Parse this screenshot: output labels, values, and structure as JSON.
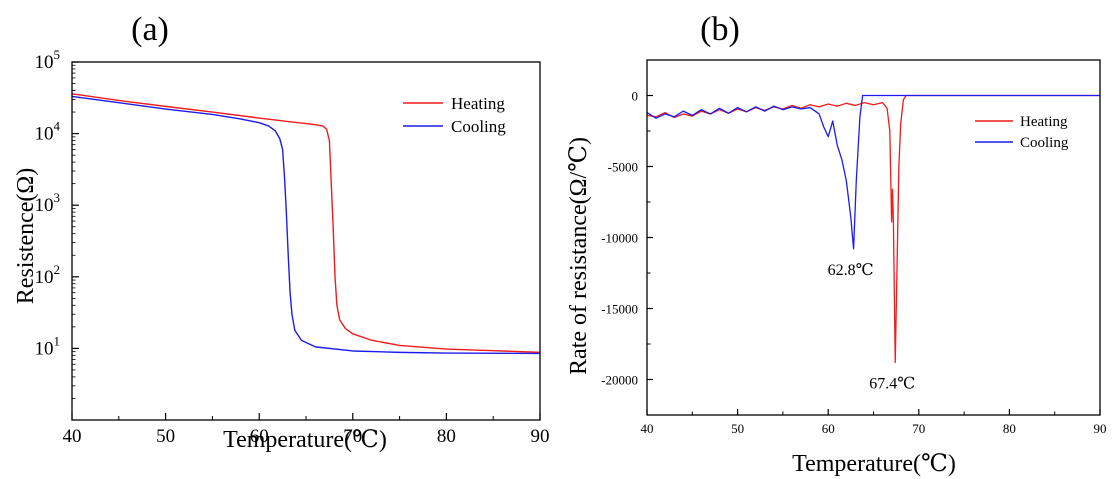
{
  "chart_data": [
    {
      "panel_label": "(a)",
      "type": "line",
      "title": "",
      "xlabel": "Temperature(℃)",
      "ylabel": "Resistence(Ω)",
      "xlim": [
        40,
        90
      ],
      "ylim": [
        1,
        100000
      ],
      "yscale": "log",
      "xticks": [
        40,
        50,
        60,
        70,
        80,
        90
      ],
      "yticks": [
        {
          "value": 10,
          "base": "10",
          "exp": "1"
        },
        {
          "value": 100,
          "base": "10",
          "exp": "2"
        },
        {
          "value": 1000,
          "base": "10",
          "exp": "3"
        },
        {
          "value": 10000,
          "base": "10",
          "exp": "4"
        },
        {
          "value": 100000,
          "base": "10",
          "exp": "5"
        }
      ],
      "legend_position": "top-right",
      "series": [
        {
          "name": "Heating",
          "color": "#ee1c1c",
          "points": [
            [
              40,
              36000
            ],
            [
              45,
              29000
            ],
            [
              50,
              24000
            ],
            [
              55,
              20000
            ],
            [
              60,
              16500
            ],
            [
              63,
              14800
            ],
            [
              65,
              13800
            ],
            [
              66,
              13300
            ],
            [
              66.8,
              12800
            ],
            [
              67.2,
              11500
            ],
            [
              67.5,
              8000
            ],
            [
              67.7,
              2000
            ],
            [
              67.9,
              500
            ],
            [
              68.1,
              100
            ],
            [
              68.3,
              40
            ],
            [
              68.6,
              25
            ],
            [
              69.2,
              19
            ],
            [
              70,
              16
            ],
            [
              72,
              13
            ],
            [
              75,
              11
            ],
            [
              80,
              9.8
            ],
            [
              85,
              9.3
            ],
            [
              90,
              8.8
            ]
          ]
        },
        {
          "name": "Cooling",
          "color": "#1c1cee",
          "points": [
            [
              40,
              33000
            ],
            [
              45,
              27000
            ],
            [
              50,
              22000
            ],
            [
              55,
              18500
            ],
            [
              58,
              16000
            ],
            [
              60,
              14200
            ],
            [
              61,
              12800
            ],
            [
              61.7,
              11000
            ],
            [
              62.2,
              8500
            ],
            [
              62.5,
              6000
            ],
            [
              62.7,
              2500
            ],
            [
              62.9,
              800
            ],
            [
              63.1,
              200
            ],
            [
              63.3,
              60
            ],
            [
              63.5,
              30
            ],
            [
              63.8,
              18
            ],
            [
              64.5,
              13
            ],
            [
              66,
              10.5
            ],
            [
              70,
              9.2
            ],
            [
              75,
              8.8
            ],
            [
              80,
              8.6
            ],
            [
              90,
              8.5
            ]
          ]
        }
      ]
    },
    {
      "panel_label": "(b)",
      "type": "line",
      "title": "",
      "xlabel": "Temperature(℃)",
      "ylabel": "Rate of resistance(Ω/℃)",
      "xlim": [
        40,
        90
      ],
      "ylim": [
        -22500,
        2500
      ],
      "xticks": [
        40,
        50,
        60,
        70,
        80,
        90
      ],
      "yticks": [
        0,
        -5000,
        -10000,
        -15000,
        -20000
      ],
      "legend_position": "top-right",
      "annotations": [
        {
          "text": "62.8℃",
          "x": 62.8,
          "y": -10800
        },
        {
          "text": "67.4℃",
          "x": 67.4,
          "y": -18800
        }
      ],
      "series": [
        {
          "name": "Heating",
          "color": "#ee1c1c",
          "points": [
            [
              40,
              -1400
            ],
            [
              41,
              -1500
            ],
            [
              42,
              -1200
            ],
            [
              43,
              -1550
            ],
            [
              44,
              -1300
            ],
            [
              45,
              -1450
            ],
            [
              46,
              -1100
            ],
            [
              47,
              -1300
            ],
            [
              48,
              -1000
            ],
            [
              49,
              -1250
            ],
            [
              50,
              -950
            ],
            [
              51,
              -1150
            ],
            [
              52,
              -850
            ],
            [
              53,
              -1050
            ],
            [
              54,
              -800
            ],
            [
              55,
              -950
            ],
            [
              56,
              -700
            ],
            [
              57,
              -900
            ],
            [
              58,
              -650
            ],
            [
              59,
              -800
            ],
            [
              60,
              -600
            ],
            [
              61,
              -750
            ],
            [
              62,
              -550
            ],
            [
              63,
              -700
            ],
            [
              64,
              -500
            ],
            [
              65,
              -650
            ],
            [
              66,
              -500
            ],
            [
              66.5,
              -900
            ],
            [
              66.8,
              -2500
            ],
            [
              67.0,
              -8900
            ],
            [
              67.1,
              -6600
            ],
            [
              67.2,
              -9000
            ],
            [
              67.4,
              -18800
            ],
            [
              67.6,
              -12000
            ],
            [
              67.8,
              -5000
            ],
            [
              68.0,
              -2000
            ],
            [
              68.3,
              -300
            ],
            [
              68.6,
              0
            ],
            [
              70,
              0
            ],
            [
              80,
              0
            ],
            [
              90,
              0
            ]
          ]
        },
        {
          "name": "Cooling",
          "color": "#1c1cee",
          "points": [
            [
              40,
              -1200
            ],
            [
              41,
              -1600
            ],
            [
              42,
              -1300
            ],
            [
              43,
              -1500
            ],
            [
              44,
              -1100
            ],
            [
              45,
              -1400
            ],
            [
              46,
              -1000
            ],
            [
              47,
              -1300
            ],
            [
              48,
              -900
            ],
            [
              49,
              -1250
            ],
            [
              50,
              -850
            ],
            [
              51,
              -1150
            ],
            [
              52,
              -800
            ],
            [
              53,
              -1100
            ],
            [
              54,
              -750
            ],
            [
              55,
              -1000
            ],
            [
              56,
              -800
            ],
            [
              57,
              -950
            ],
            [
              58,
              -850
            ],
            [
              59,
              -1300
            ],
            [
              59.5,
              -2200
            ],
            [
              60,
              -2900
            ],
            [
              60.5,
              -1800
            ],
            [
              61,
              -3500
            ],
            [
              61.5,
              -4500
            ],
            [
              62,
              -6000
            ],
            [
              62.5,
              -8600
            ],
            [
              62.8,
              -10800
            ],
            [
              63.1,
              -6000
            ],
            [
              63.5,
              -1500
            ],
            [
              63.8,
              0
            ],
            [
              64.5,
              0
            ],
            [
              70,
              0
            ],
            [
              80,
              0
            ],
            [
              90,
              0
            ]
          ]
        }
      ]
    }
  ]
}
